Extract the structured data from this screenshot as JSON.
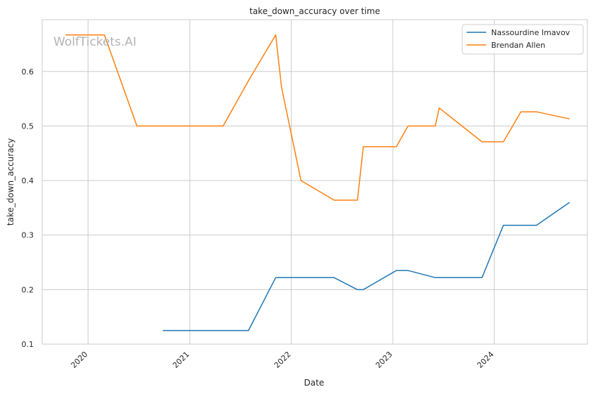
{
  "chart_data": {
    "type": "line",
    "title": "take_down_accuracy over time",
    "xlabel": "Date",
    "ylabel": "take_down_accuracy",
    "watermark": "WolfTickets.AI",
    "x_tick_labels": [
      "2020",
      "2021",
      "2022",
      "2023",
      "2024"
    ],
    "y_ticks": [
      0.1,
      0.2,
      0.3,
      0.4,
      0.5,
      0.6
    ],
    "xlim": [
      "2019-07-20",
      "2024-12-01"
    ],
    "ylim": [
      0.1,
      0.695
    ],
    "grid": true,
    "legend_position": "top-right",
    "series": [
      {
        "name": "Nassourdine Imavov",
        "color": "#1f77b4",
        "points": [
          [
            "2020-09-26",
            0.125
          ],
          [
            "2021-07-31",
            0.125
          ],
          [
            "2021-11-06",
            0.222
          ],
          [
            "2022-06-04",
            0.222
          ],
          [
            "2022-08-27",
            0.2
          ],
          [
            "2022-09-17",
            0.2
          ],
          [
            "2023-01-14",
            0.235
          ],
          [
            "2023-02-25",
            0.235
          ],
          [
            "2023-06-03",
            0.222
          ],
          [
            "2023-11-18",
            0.222
          ],
          [
            "2024-02-03",
            0.318
          ],
          [
            "2024-06-01",
            0.318
          ],
          [
            "2024-09-28",
            0.36
          ]
        ]
      },
      {
        "name": "Brendan Allen",
        "color": "#ff7f0e",
        "points": [
          [
            "2019-10-12",
            0.667
          ],
          [
            "2020-02-29",
            0.667
          ],
          [
            "2020-06-25",
            0.5
          ],
          [
            "2021-05-01",
            0.5
          ],
          [
            "2021-07-31",
            0.583
          ],
          [
            "2021-11-06",
            0.667
          ],
          [
            "2021-11-27",
            0.571
          ],
          [
            "2022-02-05",
            0.4
          ],
          [
            "2022-06-04",
            0.364
          ],
          [
            "2022-08-27",
            0.364
          ],
          [
            "2022-09-17",
            0.462
          ],
          [
            "2023-01-14",
            0.462
          ],
          [
            "2023-02-25",
            0.5
          ],
          [
            "2023-06-03",
            0.5
          ],
          [
            "2023-06-17",
            0.533
          ],
          [
            "2023-11-18",
            0.471
          ],
          [
            "2024-02-03",
            0.471
          ],
          [
            "2024-04-06",
            0.526
          ],
          [
            "2024-06-01",
            0.526
          ],
          [
            "2024-09-28",
            0.513
          ]
        ]
      }
    ]
  }
}
